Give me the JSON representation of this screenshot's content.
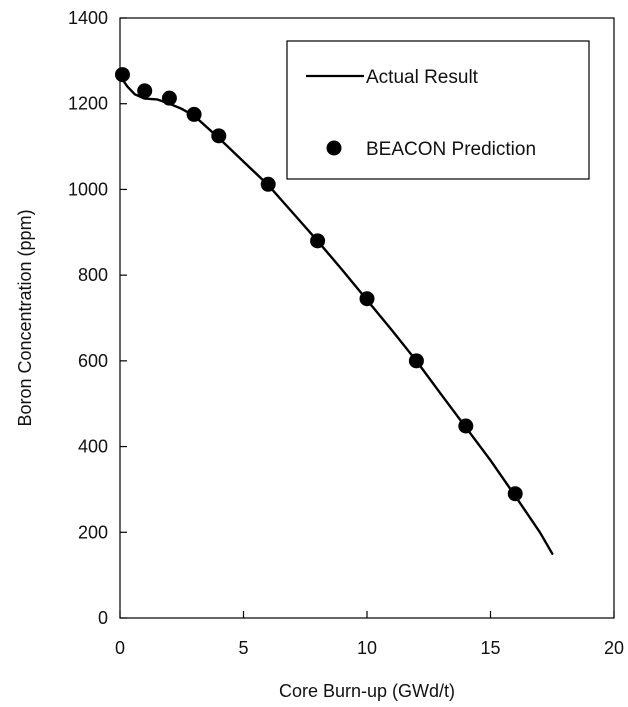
{
  "chart_data": {
    "type": "line",
    "xlabel": "Core Burn-up (GWd/t)",
    "ylabel": "Boron Concentration (ppm)",
    "xlim": [
      0,
      20
    ],
    "ylim": [
      0,
      1400
    ],
    "x_ticks": [
      0,
      5,
      10,
      15,
      20
    ],
    "y_ticks": [
      0,
      200,
      400,
      600,
      800,
      1000,
      1200,
      1400
    ],
    "grid": false,
    "legend": {
      "position": "top-right"
    },
    "series": [
      {
        "name": "Actual Result",
        "style": "line",
        "color": "#000000",
        "x": [
          0,
          0.3,
          0.6,
          1.0,
          1.5,
          2.0,
          2.5,
          3.0,
          4.0,
          5.0,
          6.0,
          7.0,
          8.0,
          9.0,
          10.0,
          11.0,
          12.0,
          13.0,
          14.0,
          15.0,
          16.0,
          17.0,
          17.5
        ],
        "y": [
          1265,
          1240,
          1222,
          1212,
          1210,
          1200,
          1188,
          1172,
          1120,
          1065,
          1010,
          945,
          880,
          812,
          742,
          672,
          600,
          522,
          445,
          368,
          285,
          200,
          150
        ]
      },
      {
        "name": "BEACON Prediction",
        "style": "scatter",
        "color": "#000000",
        "x": [
          0.1,
          1.0,
          2.0,
          3.0,
          4.0,
          6.0,
          8.0,
          10.0,
          12.0,
          14.0,
          16.0
        ],
        "y": [
          1268,
          1230,
          1213,
          1175,
          1125,
          1012,
          880,
          745,
          600,
          448,
          290
        ]
      }
    ]
  }
}
